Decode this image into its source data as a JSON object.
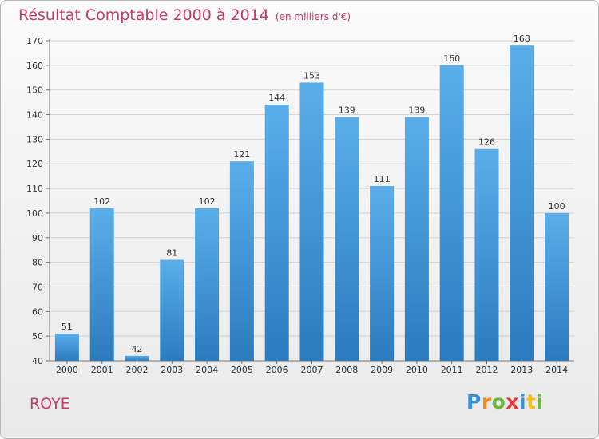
{
  "header": {
    "title": "Résultat Comptable 2000 à 2014",
    "unit": "(en milliers d'€)"
  },
  "footer": {
    "place": "ROYE",
    "logo": "Proxiti"
  },
  "colors": {
    "title": "#c6386a",
    "bar_top": "#5aaee9",
    "bar_bottom": "#2a7bbf",
    "logo_letters": [
      "#3a8fd8",
      "#f08a1c",
      "#6cb83a",
      "#e23b3b",
      "#3a8fd8",
      "#f0c11c",
      "#6cb83a"
    ]
  },
  "chart_data": {
    "type": "bar",
    "title": "Résultat Comptable 2000 à 2014",
    "subtitle": "(en milliers d'€)",
    "xlabel": "",
    "ylabel": "",
    "categories": [
      "2000",
      "2001",
      "2002",
      "2003",
      "2004",
      "2005",
      "2006",
      "2007",
      "2008",
      "2009",
      "2010",
      "2011",
      "2012",
      "2013",
      "2014"
    ],
    "values": [
      51,
      102,
      42,
      81,
      102,
      121,
      144,
      153,
      139,
      111,
      139,
      160,
      126,
      168,
      100
    ],
    "ylim": [
      40,
      170
    ],
    "yticks": [
      40,
      50,
      60,
      70,
      80,
      90,
      100,
      110,
      120,
      130,
      140,
      150,
      160,
      170
    ],
    "grid": true,
    "data_labels": true
  }
}
